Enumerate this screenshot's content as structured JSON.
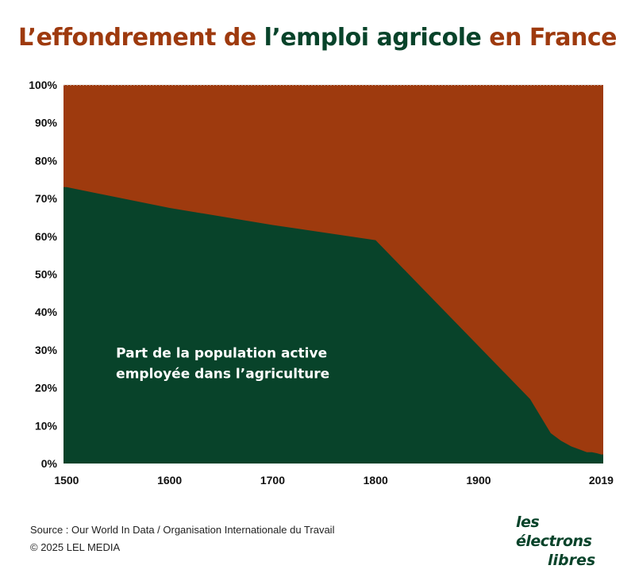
{
  "title": {
    "part1": "L’effondrement de ",
    "part2": "l’emploi agricole",
    "part3": " en France"
  },
  "colors": {
    "agriculture": "#08432a",
    "other": "#9e3a0e"
  },
  "chart_data": {
    "type": "area",
    "title": "L’effondrement de l’emploi agricole en France",
    "series": [
      {
        "name": "Part de la population active employée dans l’agriculture",
        "x": [
          1500,
          1600,
          1700,
          1800,
          1850,
          1900,
          1950,
          1970,
          1980,
          1990,
          2000,
          2005,
          2010,
          2015,
          2019
        ],
        "values": [
          73,
          67.5,
          63,
          59,
          45,
          31,
          17,
          8,
          6,
          4.5,
          3.5,
          3,
          3,
          2.7,
          2.4
        ]
      }
    ],
    "xlim": [
      1497,
      2021
    ],
    "ylim": [
      0,
      100
    ],
    "x_ticks": [
      {
        "value": 1500,
        "label": "1500"
      },
      {
        "value": 1600,
        "label": "1600"
      },
      {
        "value": 1700,
        "label": "1700"
      },
      {
        "value": 1800,
        "label": "1800"
      },
      {
        "value": 1900,
        "label": "1900"
      },
      {
        "value": 2019,
        "label": "2019"
      }
    ],
    "y_ticks": [
      {
        "value": 0,
        "label": "0%"
      },
      {
        "value": 10,
        "label": "10%"
      },
      {
        "value": 20,
        "label": "20%"
      },
      {
        "value": 30,
        "label": "30%"
      },
      {
        "value": 40,
        "label": "40%"
      },
      {
        "value": 50,
        "label": "50%"
      },
      {
        "value": 60,
        "label": "60%"
      },
      {
        "value": 70,
        "label": "70%"
      },
      {
        "value": 80,
        "label": "80%"
      },
      {
        "value": 90,
        "label": "90%"
      },
      {
        "value": 100,
        "label": "100%"
      }
    ],
    "annotation": {
      "line1": "Part de la population active",
      "line2": "employée dans l’agriculture",
      "x": 1548,
      "y": 28
    },
    "grid": false,
    "legend": "none"
  },
  "footer": {
    "source": "Source : Our World In Data / Organisation Internationale du Travail",
    "copyright": "© 2025 LEL MEDIA"
  },
  "logo": {
    "line1": "les électrons",
    "line2": "libres"
  }
}
